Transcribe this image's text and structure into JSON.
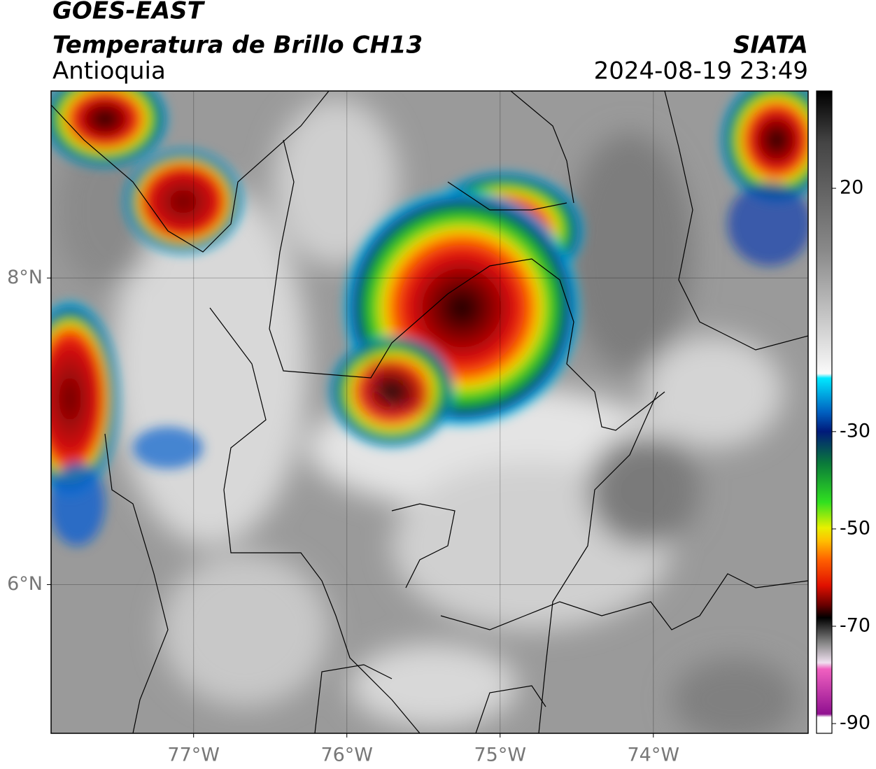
{
  "chart_data": {
    "type": "map",
    "title": "GOES-EAST",
    "subtitle": "Temperatura de Brillo CH13",
    "region": "Antioquia",
    "source": "SIATA",
    "datetime": "2024-08-19 23:49",
    "xlim": [
      -77.93,
      -72.99
    ],
    "ylim": [
      5.03,
      9.22
    ],
    "xticks": [
      {
        "value": -77,
        "label": "77°W"
      },
      {
        "value": -76,
        "label": "76°W"
      },
      {
        "value": -75,
        "label": "75°W"
      },
      {
        "value": -74,
        "label": "74°W"
      }
    ],
    "yticks": [
      {
        "value": 6,
        "label": "6°N"
      },
      {
        "value": 8,
        "label": "8°N"
      }
    ],
    "grid": true,
    "colorbar": {
      "lim": [
        -92,
        40
      ],
      "ticks": [
        20,
        -30,
        -50,
        -70,
        -90
      ]
    }
  }
}
